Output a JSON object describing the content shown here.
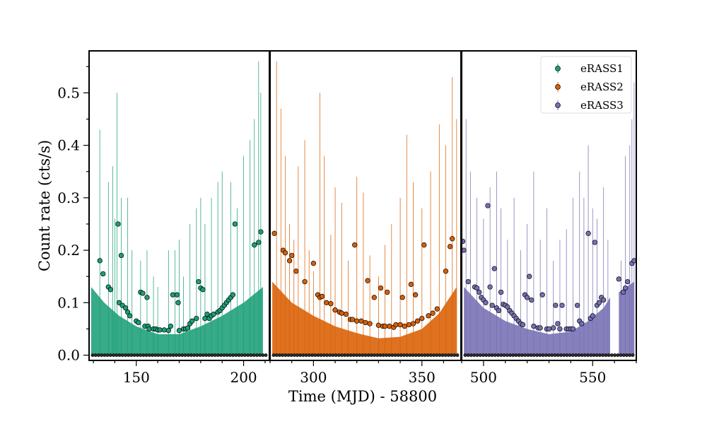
{
  "chart_data": {
    "type": "scatter",
    "xlabel": "Time (MJD) - 58800",
    "ylabel": "Count rate (cts/s)",
    "ylim": [
      -0.01,
      0.58
    ],
    "yticks": [
      0.0,
      0.1,
      0.2,
      0.3,
      0.4,
      0.5
    ],
    "ytick_labels": [
      "0.0",
      "0.1",
      "0.2",
      "0.3",
      "0.4",
      "0.5"
    ],
    "legend_position": "top-right",
    "panels": [
      {
        "name": "eRASS1",
        "color": "#1b9e77",
        "xlim": [
          128,
          212
        ],
        "xticks": [
          150,
          200
        ],
        "xtick_labels": [
          "150",
          "200"
        ],
        "error_envelope": [
          [
            129,
            0.13
          ],
          [
            135,
            0.1
          ],
          [
            142,
            0.075
          ],
          [
            150,
            0.055
          ],
          [
            160,
            0.04
          ],
          [
            170,
            0.04
          ],
          [
            180,
            0.055
          ],
          [
            190,
            0.075
          ],
          [
            200,
            0.1
          ],
          [
            209,
            0.13
          ]
        ],
        "error_spikes": [
          [
            133,
            0.43
          ],
          [
            137,
            0.33
          ],
          [
            139,
            0.36
          ],
          [
            140,
            0.26
          ],
          [
            141,
            0.5
          ],
          [
            143,
            0.3
          ],
          [
            146,
            0.3
          ],
          [
            148,
            0.2
          ],
          [
            152,
            0.18
          ],
          [
            155,
            0.2
          ],
          [
            158,
            0.15
          ],
          [
            160,
            0.13
          ],
          [
            165,
            0.2
          ],
          [
            168,
            0.2
          ],
          [
            170,
            0.22
          ],
          [
            172,
            0.15
          ],
          [
            175,
            0.25
          ],
          [
            178,
            0.28
          ],
          [
            180,
            0.3
          ],
          [
            182,
            0.25
          ],
          [
            185,
            0.3
          ],
          [
            188,
            0.33
          ],
          [
            190,
            0.35
          ],
          [
            194,
            0.33
          ],
          [
            197,
            0.28
          ],
          [
            200,
            0.38
          ],
          [
            203,
            0.41
          ],
          [
            205,
            0.45
          ],
          [
            207,
            0.56
          ],
          [
            208,
            0.5
          ]
        ],
        "points": [
          [
            133,
            0.18
          ],
          [
            134.5,
            0.155
          ],
          [
            137,
            0.13
          ],
          [
            138,
            0.125
          ],
          [
            141.5,
            0.25
          ],
          [
            142,
            0.1
          ],
          [
            143,
            0.19
          ],
          [
            143.5,
            0.095
          ],
          [
            145,
            0.09
          ],
          [
            146,
            0.082
          ],
          [
            147,
            0.075
          ],
          [
            150,
            0.065
          ],
          [
            151,
            0.062
          ],
          [
            152,
            0.12
          ],
          [
            153,
            0.118
          ],
          [
            154,
            0.055
          ],
          [
            155,
            0.11
          ],
          [
            155.5,
            0.055
          ],
          [
            156,
            0.05
          ],
          [
            158,
            0.05
          ],
          [
            159,
            0.05
          ],
          [
            160,
            0.048
          ],
          [
            161,
            0.048
          ],
          [
            163,
            0.048
          ],
          [
            165,
            0.047
          ],
          [
            166,
            0.055
          ],
          [
            167,
            0.115
          ],
          [
            169,
            0.115
          ],
          [
            169.5,
            0.1
          ],
          [
            170,
            0.047
          ],
          [
            172,
            0.05
          ],
          [
            173,
            0.05
          ],
          [
            174,
            0.052
          ],
          [
            175,
            0.06
          ],
          [
            176,
            0.065
          ],
          [
            178,
            0.07
          ],
          [
            179,
            0.14
          ],
          [
            180,
            0.128
          ],
          [
            181,
            0.125
          ],
          [
            182,
            0.07
          ],
          [
            183,
            0.078
          ],
          [
            184,
            0.07
          ],
          [
            185,
            0.075
          ],
          [
            186,
            0.078
          ],
          [
            188,
            0.082
          ],
          [
            189,
            0.085
          ],
          [
            190,
            0.09
          ],
          [
            191,
            0.095
          ],
          [
            192,
            0.1
          ],
          [
            193,
            0.105
          ],
          [
            194,
            0.11
          ],
          [
            195,
            0.115
          ],
          [
            196,
            0.25
          ],
          [
            205,
            0.21
          ],
          [
            207,
            0.215
          ],
          [
            208,
            0.235
          ]
        ]
      },
      {
        "name": "eRASS2",
        "color": "#d95f02",
        "xlim": [
          280,
          368
        ],
        "xticks": [
          300,
          350
        ],
        "xtick_labels": [
          "300",
          "350"
        ],
        "error_envelope": [
          [
            281,
            0.14
          ],
          [
            290,
            0.1
          ],
          [
            300,
            0.075
          ],
          [
            310,
            0.055
          ],
          [
            320,
            0.042
          ],
          [
            330,
            0.032
          ],
          [
            340,
            0.035
          ],
          [
            350,
            0.05
          ],
          [
            358,
            0.08
          ],
          [
            366,
            0.13
          ]
        ],
        "error_spikes": [
          [
            283,
            0.56
          ],
          [
            285,
            0.47
          ],
          [
            287,
            0.38
          ],
          [
            289,
            0.25
          ],
          [
            291,
            0.22
          ],
          [
            293,
            0.36
          ],
          [
            296,
            0.41
          ],
          [
            298,
            0.2
          ],
          [
            300,
            0.16
          ],
          [
            303,
            0.5
          ],
          [
            305,
            0.38
          ],
          [
            308,
            0.23
          ],
          [
            310,
            0.32
          ],
          [
            313,
            0.29
          ],
          [
            316,
            0.18
          ],
          [
            320,
            0.34
          ],
          [
            323,
            0.31
          ],
          [
            326,
            0.19
          ],
          [
            330,
            0.15
          ],
          [
            333,
            0.21
          ],
          [
            336,
            0.25
          ],
          [
            340,
            0.3
          ],
          [
            343,
            0.42
          ],
          [
            346,
            0.33
          ],
          [
            350,
            0.28
          ],
          [
            354,
            0.35
          ],
          [
            358,
            0.44
          ],
          [
            361,
            0.4
          ],
          [
            364,
            0.53
          ],
          [
            366,
            0.45
          ]
        ],
        "points": [
          [
            282,
            0.232
          ],
          [
            286,
            0.2
          ],
          [
            287,
            0.195
          ],
          [
            289,
            0.18
          ],
          [
            290,
            0.19
          ],
          [
            292,
            0.16
          ],
          [
            296,
            0.14
          ],
          [
            300,
            0.175
          ],
          [
            302,
            0.115
          ],
          [
            303,
            0.11
          ],
          [
            304,
            0.112
          ],
          [
            306,
            0.1
          ],
          [
            308,
            0.098
          ],
          [
            310,
            0.086
          ],
          [
            312,
            0.082
          ],
          [
            313,
            0.08
          ],
          [
            315,
            0.078
          ],
          [
            317,
            0.068
          ],
          [
            318,
            0.068
          ],
          [
            319,
            0.21
          ],
          [
            320,
            0.065
          ],
          [
            322,
            0.065
          ],
          [
            324,
            0.062
          ],
          [
            325,
            0.142
          ],
          [
            326,
            0.06
          ],
          [
            328,
            0.11
          ],
          [
            330,
            0.057
          ],
          [
            331,
            0.128
          ],
          [
            332,
            0.055
          ],
          [
            333,
            0.055
          ],
          [
            334,
            0.12
          ],
          [
            335,
            0.055
          ],
          [
            337,
            0.053
          ],
          [
            338,
            0.058
          ],
          [
            340,
            0.058
          ],
          [
            341,
            0.11
          ],
          [
            342,
            0.055
          ],
          [
            344,
            0.058
          ],
          [
            345,
            0.135
          ],
          [
            346,
            0.06
          ],
          [
            347,
            0.115
          ],
          [
            348,
            0.065
          ],
          [
            350,
            0.07
          ],
          [
            351,
            0.21
          ],
          [
            353,
            0.075
          ],
          [
            355,
            0.08
          ],
          [
            357,
            0.088
          ],
          [
            361,
            0.16
          ],
          [
            363,
            0.207
          ],
          [
            364,
            0.222
          ]
        ]
      },
      {
        "name": "eRASS3",
        "color": "#7570b3",
        "xlim": [
          490,
          570
        ],
        "xticks": [
          500,
          550
        ],
        "xtick_labels": [
          "500",
          "550"
        ],
        "error_envelope": [
          [
            491,
            0.13
          ],
          [
            500,
            0.09
          ],
          [
            510,
            0.065
          ],
          [
            520,
            0.05
          ],
          [
            530,
            0.04
          ],
          [
            540,
            0.045
          ],
          [
            548,
            0.065
          ],
          [
            555,
            0.09
          ],
          [
            558,
            0.11
          ]
        ],
        "error_envelope_2": [
          [
            562,
            0.12
          ],
          [
            569,
            0.14
          ]
        ],
        "error_spikes": [
          [
            492,
            0.45
          ],
          [
            494,
            0.35
          ],
          [
            497,
            0.3
          ],
          [
            500,
            0.26
          ],
          [
            503,
            0.32
          ],
          [
            506,
            0.35
          ],
          [
            508,
            0.28
          ],
          [
            511,
            0.22
          ],
          [
            514,
            0.3
          ],
          [
            517,
            0.2
          ],
          [
            520,
            0.25
          ],
          [
            523,
            0.35
          ],
          [
            526,
            0.22
          ],
          [
            529,
            0.28
          ],
          [
            532,
            0.18
          ],
          [
            535,
            0.22
          ],
          [
            538,
            0.24
          ],
          [
            541,
            0.3
          ],
          [
            544,
            0.35
          ],
          [
            546,
            0.3
          ],
          [
            548,
            0.4
          ],
          [
            550,
            0.28
          ],
          [
            552,
            0.26
          ],
          [
            555,
            0.32
          ],
          [
            557,
            0.22
          ],
          [
            563,
            0.18
          ],
          [
            565,
            0.38
          ],
          [
            567,
            0.4
          ],
          [
            568,
            0.45
          ],
          [
            569,
            0.52
          ]
        ],
        "points": [
          [
            490.5,
            0.217
          ],
          [
            491,
            0.2
          ],
          [
            493,
            0.14
          ],
          [
            496,
            0.13
          ],
          [
            497,
            0.128
          ],
          [
            498,
            0.12
          ],
          [
            499,
            0.11
          ],
          [
            500,
            0.105
          ],
          [
            501,
            0.1
          ],
          [
            502,
            0.285
          ],
          [
            503,
            0.13
          ],
          [
            504,
            0.095
          ],
          [
            505,
            0.165
          ],
          [
            506,
            0.09
          ],
          [
            507,
            0.085
          ],
          [
            508,
            0.12
          ],
          [
            509,
            0.097
          ],
          [
            510,
            0.095
          ],
          [
            511,
            0.092
          ],
          [
            512,
            0.085
          ],
          [
            513,
            0.08
          ],
          [
            514,
            0.075
          ],
          [
            515,
            0.07
          ],
          [
            516,
            0.065
          ],
          [
            517,
            0.06
          ],
          [
            518,
            0.058
          ],
          [
            519,
            0.115
          ],
          [
            520,
            0.11
          ],
          [
            521,
            0.15
          ],
          [
            522,
            0.105
          ],
          [
            523,
            0.055
          ],
          [
            525,
            0.052
          ],
          [
            526,
            0.052
          ],
          [
            527,
            0.115
          ],
          [
            529,
            0.05
          ],
          [
            530,
            0.05
          ],
          [
            532,
            0.052
          ],
          [
            533,
            0.095
          ],
          [
            534,
            0.06
          ],
          [
            535,
            0.05
          ],
          [
            536,
            0.095
          ],
          [
            538,
            0.05
          ],
          [
            539,
            0.05
          ],
          [
            540,
            0.05
          ],
          [
            541,
            0.05
          ],
          [
            543,
            0.095
          ],
          [
            544,
            0.065
          ],
          [
            545,
            0.06
          ],
          [
            548,
            0.232
          ],
          [
            549,
            0.07
          ],
          [
            550,
            0.075
          ],
          [
            551,
            0.215
          ],
          [
            552,
            0.095
          ],
          [
            553,
            0.1
          ],
          [
            554,
            0.11
          ],
          [
            555,
            0.105
          ],
          [
            562,
            0.145
          ],
          [
            564,
            0.12
          ],
          [
            565,
            0.128
          ],
          [
            566,
            0.14
          ],
          [
            568,
            0.175
          ],
          [
            569,
            0.18
          ]
        ]
      }
    ]
  }
}
